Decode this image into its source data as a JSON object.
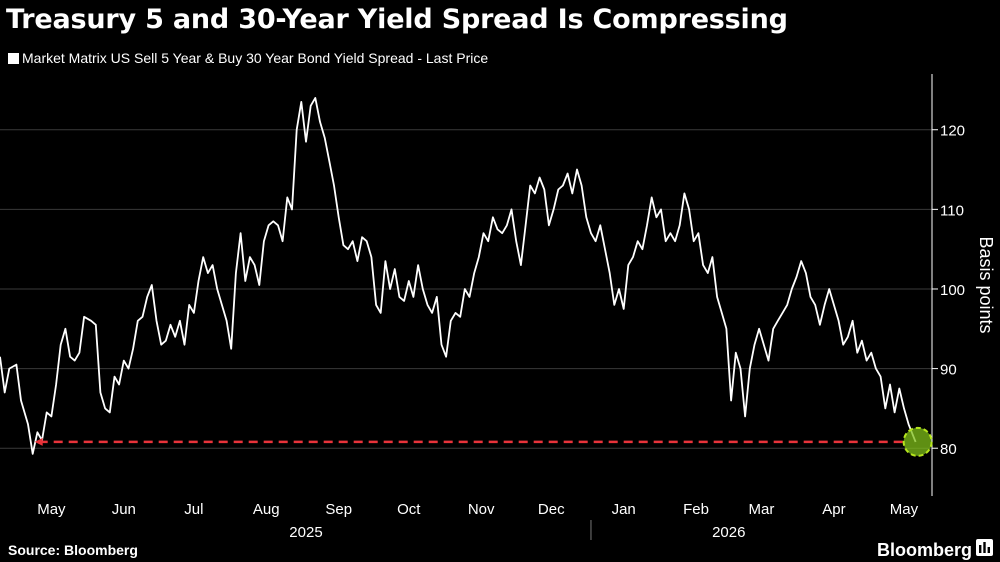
{
  "title": "Treasury 5 and 30-Year Yield Spread Is Compressing",
  "legend": {
    "label": "Market Matrix US Sell 5 Year & Buy 30 Year Bond Yield Spread - Last Price"
  },
  "source": "Source: Bloomberg",
  "brand": "Bloomberg",
  "colors": {
    "background": "#000000",
    "line": "#ffffff",
    "grid": "#3a3a3a",
    "reference": "#e8333a",
    "marker": "#7fbf1a"
  },
  "icons": {
    "brand": "bar-chart-icon"
  },
  "chart_data": {
    "type": "line",
    "title": "Treasury 5 and 30-Year Yield Spread Is Compressing",
    "ylabel": "Basis points",
    "y_axis_position": "right",
    "ylim": [
      74,
      127
    ],
    "xlim": [
      "2025-04-23",
      "2026-05-27"
    ],
    "grid": "horizontal",
    "yticks": [
      80,
      90,
      100,
      110,
      120
    ],
    "x_month_labels": [
      {
        "label": "May",
        "date": "2025-05-15"
      },
      {
        "label": "Jun",
        "date": "2025-06-15"
      },
      {
        "label": "Jul",
        "date": "2025-07-15"
      },
      {
        "label": "Aug",
        "date": "2025-08-15"
      },
      {
        "label": "Sep",
        "date": "2025-09-15"
      },
      {
        "label": "Oct",
        "date": "2025-10-15"
      },
      {
        "label": "Nov",
        "date": "2025-11-15"
      },
      {
        "label": "Dec",
        "date": "2025-12-15"
      },
      {
        "label": "Jan",
        "date": "2026-01-15"
      },
      {
        "label": "Feb",
        "date": "2026-02-15"
      },
      {
        "label": "Mar",
        "date": "2026-03-15"
      },
      {
        "label": "Apr",
        "date": "2026-04-15"
      },
      {
        "label": "May",
        "date": "2026-05-15"
      }
    ],
    "x_year_labels": [
      {
        "label": "2025",
        "date": "2025-09-01"
      },
      {
        "label": "2026",
        "date": "2026-03-01"
      }
    ],
    "year_divider_date": "2026-01-01",
    "reference_line": {
      "value": 80.8,
      "from": "2025-05-07",
      "to": "2026-05-20",
      "style": "dashed"
    },
    "highlight_point": {
      "date": "2026-05-20",
      "value": 80.8
    },
    "series": [
      {
        "color": "#ffffff",
        "points": [
          [
            "2025-04-23",
            91.5
          ],
          [
            "2025-04-25",
            87
          ],
          [
            "2025-04-27",
            90
          ],
          [
            "2025-04-30",
            90.5
          ],
          [
            "2025-05-02",
            86
          ],
          [
            "2025-05-05",
            83
          ],
          [
            "2025-05-07",
            79.3
          ],
          [
            "2025-05-09",
            82
          ],
          [
            "2025-05-11",
            81
          ],
          [
            "2025-05-13",
            84.5
          ],
          [
            "2025-05-15",
            84
          ],
          [
            "2025-05-17",
            88
          ],
          [
            "2025-05-19",
            93
          ],
          [
            "2025-05-21",
            95
          ],
          [
            "2025-05-23",
            91.5
          ],
          [
            "2025-05-25",
            91
          ],
          [
            "2025-05-27",
            92
          ],
          [
            "2025-05-29",
            96.5
          ],
          [
            "2025-06-01",
            96
          ],
          [
            "2025-06-03",
            95.5
          ],
          [
            "2025-06-05",
            87
          ],
          [
            "2025-06-07",
            85
          ],
          [
            "2025-06-09",
            84.5
          ],
          [
            "2025-06-11",
            89
          ],
          [
            "2025-06-13",
            88
          ],
          [
            "2025-06-15",
            91
          ],
          [
            "2025-06-17",
            90
          ],
          [
            "2025-06-19",
            92.5
          ],
          [
            "2025-06-21",
            96
          ],
          [
            "2025-06-23",
            96.5
          ],
          [
            "2025-06-25",
            99
          ],
          [
            "2025-06-27",
            100.5
          ],
          [
            "2025-06-29",
            96
          ],
          [
            "2025-07-01",
            93
          ],
          [
            "2025-07-03",
            93.5
          ],
          [
            "2025-07-05",
            95.5
          ],
          [
            "2025-07-07",
            94
          ],
          [
            "2025-07-09",
            96
          ],
          [
            "2025-07-11",
            93
          ],
          [
            "2025-07-13",
            98
          ],
          [
            "2025-07-15",
            97
          ],
          [
            "2025-07-17",
            101
          ],
          [
            "2025-07-19",
            104
          ],
          [
            "2025-07-21",
            102
          ],
          [
            "2025-07-23",
            103
          ],
          [
            "2025-07-25",
            100
          ],
          [
            "2025-07-27",
            98
          ],
          [
            "2025-07-29",
            96
          ],
          [
            "2025-07-31",
            92.5
          ],
          [
            "2025-08-02",
            102
          ],
          [
            "2025-08-04",
            107
          ],
          [
            "2025-08-06",
            101
          ],
          [
            "2025-08-08",
            104
          ],
          [
            "2025-08-10",
            103
          ],
          [
            "2025-08-12",
            100.5
          ],
          [
            "2025-08-14",
            106
          ],
          [
            "2025-08-16",
            108
          ],
          [
            "2025-08-18",
            108.5
          ],
          [
            "2025-08-20",
            108
          ],
          [
            "2025-08-22",
            106
          ],
          [
            "2025-08-24",
            111.5
          ],
          [
            "2025-08-26",
            110
          ],
          [
            "2025-08-28",
            120
          ],
          [
            "2025-08-30",
            123.5
          ],
          [
            "2025-09-01",
            118.5
          ],
          [
            "2025-09-03",
            123
          ],
          [
            "2025-09-05",
            124
          ],
          [
            "2025-09-07",
            121
          ],
          [
            "2025-09-09",
            119
          ],
          [
            "2025-09-11",
            116
          ],
          [
            "2025-09-13",
            113
          ],
          [
            "2025-09-15",
            109
          ],
          [
            "2025-09-17",
            105.5
          ],
          [
            "2025-09-19",
            105
          ],
          [
            "2025-09-21",
            106
          ],
          [
            "2025-09-23",
            103.5
          ],
          [
            "2025-09-25",
            106.5
          ],
          [
            "2025-09-27",
            106
          ],
          [
            "2025-09-29",
            104
          ],
          [
            "2025-10-01",
            98
          ],
          [
            "2025-10-03",
            97
          ],
          [
            "2025-10-05",
            103.5
          ],
          [
            "2025-10-07",
            100
          ],
          [
            "2025-10-09",
            102.5
          ],
          [
            "2025-10-11",
            99
          ],
          [
            "2025-10-13",
            98.5
          ],
          [
            "2025-10-15",
            101
          ],
          [
            "2025-10-17",
            99
          ],
          [
            "2025-10-19",
            103
          ],
          [
            "2025-10-21",
            100
          ],
          [
            "2025-10-23",
            98
          ],
          [
            "2025-10-25",
            97
          ],
          [
            "2025-10-27",
            99
          ],
          [
            "2025-10-29",
            93
          ],
          [
            "2025-10-31",
            91.5
          ],
          [
            "2025-11-02",
            96
          ],
          [
            "2025-11-04",
            97
          ],
          [
            "2025-11-06",
            96.5
          ],
          [
            "2025-11-08",
            100
          ],
          [
            "2025-11-10",
            99
          ],
          [
            "2025-11-12",
            102
          ],
          [
            "2025-11-14",
            104
          ],
          [
            "2025-11-16",
            107
          ],
          [
            "2025-11-18",
            106
          ],
          [
            "2025-11-20",
            109
          ],
          [
            "2025-11-22",
            107.5
          ],
          [
            "2025-11-24",
            107
          ],
          [
            "2025-11-26",
            108
          ],
          [
            "2025-11-28",
            110
          ],
          [
            "2025-11-30",
            106
          ],
          [
            "2025-12-02",
            103
          ],
          [
            "2025-12-04",
            108
          ],
          [
            "2025-12-06",
            113
          ],
          [
            "2025-12-08",
            112
          ],
          [
            "2025-12-10",
            114
          ],
          [
            "2025-12-12",
            112.5
          ],
          [
            "2025-12-14",
            108
          ],
          [
            "2025-12-16",
            110
          ],
          [
            "2025-12-18",
            112.5
          ],
          [
            "2025-12-20",
            113
          ],
          [
            "2025-12-22",
            114.5
          ],
          [
            "2025-12-24",
            112
          ],
          [
            "2025-12-26",
            115
          ],
          [
            "2025-12-28",
            113
          ],
          [
            "2025-12-30",
            109
          ],
          [
            "2026-01-01",
            107
          ],
          [
            "2026-01-03",
            106
          ],
          [
            "2026-01-05",
            108
          ],
          [
            "2026-01-07",
            105
          ],
          [
            "2026-01-09",
            102
          ],
          [
            "2026-01-11",
            98
          ],
          [
            "2026-01-13",
            100
          ],
          [
            "2026-01-15",
            97.5
          ],
          [
            "2026-01-17",
            103
          ],
          [
            "2026-01-19",
            104
          ],
          [
            "2026-01-21",
            106
          ],
          [
            "2026-01-23",
            105
          ],
          [
            "2026-01-25",
            108
          ],
          [
            "2026-01-27",
            111.5
          ],
          [
            "2026-01-29",
            109
          ],
          [
            "2026-01-31",
            110
          ],
          [
            "2026-02-02",
            106
          ],
          [
            "2026-02-04",
            107
          ],
          [
            "2026-02-06",
            106
          ],
          [
            "2026-02-08",
            108
          ],
          [
            "2026-02-10",
            112
          ],
          [
            "2026-02-12",
            110
          ],
          [
            "2026-02-14",
            106
          ],
          [
            "2026-02-16",
            107
          ],
          [
            "2026-02-18",
            103
          ],
          [
            "2026-02-20",
            102
          ],
          [
            "2026-02-22",
            104
          ],
          [
            "2026-02-24",
            99
          ],
          [
            "2026-02-26",
            97
          ],
          [
            "2026-02-28",
            95
          ],
          [
            "2026-03-02",
            86
          ],
          [
            "2026-03-04",
            92
          ],
          [
            "2026-03-06",
            90
          ],
          [
            "2026-03-08",
            84
          ],
          [
            "2026-03-10",
            90
          ],
          [
            "2026-03-12",
            93
          ],
          [
            "2026-03-14",
            95
          ],
          [
            "2026-03-16",
            93
          ],
          [
            "2026-03-18",
            91
          ],
          [
            "2026-03-20",
            95
          ],
          [
            "2026-03-22",
            96
          ],
          [
            "2026-03-24",
            97
          ],
          [
            "2026-03-26",
            98
          ],
          [
            "2026-03-28",
            100
          ],
          [
            "2026-03-30",
            101.5
          ],
          [
            "2026-04-01",
            103.5
          ],
          [
            "2026-04-03",
            102
          ],
          [
            "2026-04-05",
            99
          ],
          [
            "2026-04-07",
            98
          ],
          [
            "2026-04-09",
            95.5
          ],
          [
            "2026-04-11",
            98
          ],
          [
            "2026-04-13",
            100
          ],
          [
            "2026-04-15",
            98
          ],
          [
            "2026-04-17",
            96
          ],
          [
            "2026-04-19",
            93
          ],
          [
            "2026-04-21",
            94
          ],
          [
            "2026-04-23",
            96
          ],
          [
            "2026-04-25",
            92
          ],
          [
            "2026-04-27",
            93.5
          ],
          [
            "2026-04-29",
            91
          ],
          [
            "2026-05-01",
            92
          ],
          [
            "2026-05-03",
            90
          ],
          [
            "2026-05-05",
            89
          ],
          [
            "2026-05-07",
            85
          ],
          [
            "2026-05-09",
            88
          ],
          [
            "2026-05-11",
            84.5
          ],
          [
            "2026-05-13",
            87.5
          ],
          [
            "2026-05-15",
            85
          ],
          [
            "2026-05-17",
            83
          ],
          [
            "2026-05-20",
            80.8
          ]
        ]
      }
    ]
  }
}
